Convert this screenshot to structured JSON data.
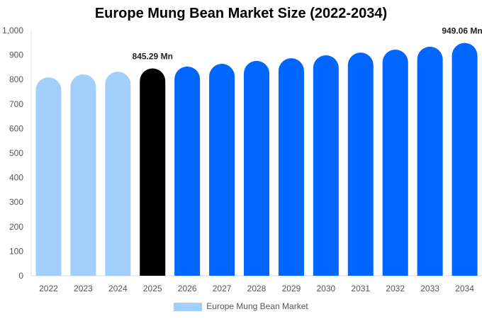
{
  "chart_data": {
    "type": "bar",
    "title": "Europe Mung Bean Market Size (2022-2034)",
    "categories": [
      "2022",
      "2023",
      "2024",
      "2025",
      "2026",
      "2027",
      "2028",
      "2029",
      "2030",
      "2031",
      "2032",
      "2033",
      "2034"
    ],
    "series": [
      {
        "name": "Europe Mung Bean Market",
        "values": [
          809,
          821,
          832,
          845.29,
          853,
          864,
          876,
          887,
          899,
          910,
          922,
          934,
          949.06
        ]
      }
    ],
    "data_labels": {
      "3": "845.29 Mn",
      "12": "949.06 Mn"
    },
    "ylim": [
      0,
      1000
    ],
    "yticks": [
      "0",
      "100",
      "200",
      "300",
      "400",
      "500",
      "600",
      "700",
      "800",
      "900",
      "1,000"
    ],
    "grid": false,
    "legend": "bottom",
    "colors": {
      "historical": "#a3cffd",
      "current": "#000000",
      "forecast": "#0066ff"
    }
  }
}
